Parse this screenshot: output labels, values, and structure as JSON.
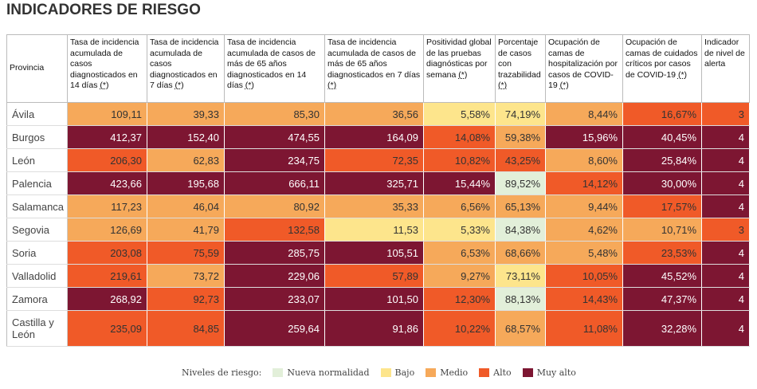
{
  "header": {
    "title": "INDICADORES DE RIESGO"
  },
  "table": {
    "columns": [
      {
        "text": "Provincia"
      },
      {
        "text": "Tasa de incidencia acumulada de casos diagnosticados en 14 días",
        "note": "(*)"
      },
      {
        "text": "Tasa de incidencia acumulada de casos diagnosticados en 7 días",
        "note": "(*)"
      },
      {
        "text": "Tasa de incidencia acumulada de casos de más de 65 años diagnosticados en 14 días",
        "note": "(*)"
      },
      {
        "text": "Tasa de incidencia acumulada de casos de más de 65 años diagnosticados en 7 días",
        "note": "(*)"
      },
      {
        "text": "Positividad global de las pruebas diagnósticas por semana",
        "note": "(*)"
      },
      {
        "text": "Porcentaje de casos con trazabilidad",
        "note": "(*)"
      },
      {
        "text": "Ocupación de camas de hospitalización por casos de COVID-19",
        "note": "(*)"
      },
      {
        "text": "Ocupación de camas de cuidados críticos por casos de COVID-19",
        "note": "(*)"
      },
      {
        "text": "Indicador de nivel de alerta"
      }
    ],
    "rows": [
      {
        "provincia": "Ávila",
        "values": [
          "109,11",
          "39,33",
          "85,30",
          "36,56",
          "5,58%",
          "74,19%",
          "8,44%",
          "16,67%",
          "3"
        ],
        "colors": [
          "#f6a95a",
          "#f6a95a",
          "#f6a95a",
          "#f6a95a",
          "#fde58c",
          "#fde58c",
          "#f6a95a",
          "#f05a28",
          "#f05a28"
        ]
      },
      {
        "provincia": "Burgos",
        "values": [
          "412,37",
          "152,40",
          "474,55",
          "164,09",
          "14,08%",
          "59,38%",
          "15,96%",
          "40,45%",
          "4"
        ],
        "colors": [
          "#7d1632",
          "#7d1632",
          "#7d1632",
          "#7d1632",
          "#f05a28",
          "#f6a95a",
          "#7d1632",
          "#7d1632",
          "#7d1632"
        ]
      },
      {
        "provincia": "León",
        "values": [
          "206,30",
          "62,83",
          "234,75",
          "72,35",
          "10,82%",
          "43,25%",
          "8,60%",
          "25,84%",
          "4"
        ],
        "colors": [
          "#f05a28",
          "#f6a95a",
          "#7d1632",
          "#f05a28",
          "#f05a28",
          "#f05a28",
          "#f6a95a",
          "#7d1632",
          "#7d1632"
        ]
      },
      {
        "provincia": "Palencia",
        "values": [
          "423,66",
          "195,68",
          "666,11",
          "325,71",
          "15,44%",
          "89,52%",
          "14,12%",
          "30,00%",
          "4"
        ],
        "colors": [
          "#7d1632",
          "#7d1632",
          "#7d1632",
          "#7d1632",
          "#7d1632",
          "#e2efd9",
          "#f05a28",
          "#7d1632",
          "#7d1632"
        ]
      },
      {
        "provincia": "Salamanca",
        "values": [
          "117,23",
          "46,04",
          "80,92",
          "35,33",
          "6,56%",
          "65,13%",
          "9,44%",
          "17,57%",
          "4"
        ],
        "colors": [
          "#f6a95a",
          "#f6a95a",
          "#f6a95a",
          "#f6a95a",
          "#f6a95a",
          "#f6a95a",
          "#f6a95a",
          "#f05a28",
          "#7d1632"
        ]
      },
      {
        "provincia": "Segovia",
        "values": [
          "126,69",
          "41,79",
          "132,58",
          "11,53",
          "5,33%",
          "84,38%",
          "4,62%",
          "10,71%",
          "3"
        ],
        "colors": [
          "#f6a95a",
          "#f6a95a",
          "#f05a28",
          "#fde58c",
          "#fde58c",
          "#e2efd9",
          "#f6a95a",
          "#f6a95a",
          "#f05a28"
        ]
      },
      {
        "provincia": "Soria",
        "values": [
          "203,08",
          "75,59",
          "285,75",
          "105,51",
          "6,53%",
          "68,66%",
          "5,48%",
          "23,53%",
          "4"
        ],
        "colors": [
          "#f05a28",
          "#f05a28",
          "#7d1632",
          "#7d1632",
          "#f6a95a",
          "#f6a95a",
          "#f6a95a",
          "#f05a28",
          "#7d1632"
        ]
      },
      {
        "provincia": "Valladolid",
        "values": [
          "219,61",
          "73,72",
          "229,06",
          "57,89",
          "9,27%",
          "73,11%",
          "10,05%",
          "45,52%",
          "4"
        ],
        "colors": [
          "#f05a28",
          "#f6a95a",
          "#7d1632",
          "#f05a28",
          "#f6a95a",
          "#fde58c",
          "#f05a28",
          "#7d1632",
          "#7d1632"
        ]
      },
      {
        "provincia": "Zamora",
        "values": [
          "268,92",
          "92,73",
          "233,07",
          "101,50",
          "12,30%",
          "88,13%",
          "14,43%",
          "47,37%",
          "4"
        ],
        "colors": [
          "#7d1632",
          "#f05a28",
          "#7d1632",
          "#7d1632",
          "#f05a28",
          "#e2efd9",
          "#f05a28",
          "#7d1632",
          "#7d1632"
        ]
      },
      {
        "provincia": "Castilla y León",
        "values": [
          "235,09",
          "84,85",
          "259,64",
          "91,86",
          "10,22%",
          "68,57%",
          "11,08%",
          "32,28%",
          "4"
        ],
        "colors": [
          "#f05a28",
          "#f05a28",
          "#7d1632",
          "#7d1632",
          "#f05a28",
          "#f6a95a",
          "#f05a28",
          "#7d1632",
          "#7d1632"
        ]
      }
    ]
  },
  "legend": {
    "title": "Niveles de riesgo:",
    "items": [
      {
        "label": "Nueva normalidad",
        "color": "#e2efd9"
      },
      {
        "label": "Bajo",
        "color": "#fde58c"
      },
      {
        "label": "Medio",
        "color": "#f6a95a"
      },
      {
        "label": "Alto",
        "color": "#f05a28"
      },
      {
        "label": "Muy alto",
        "color": "#7d1632"
      }
    ]
  }
}
